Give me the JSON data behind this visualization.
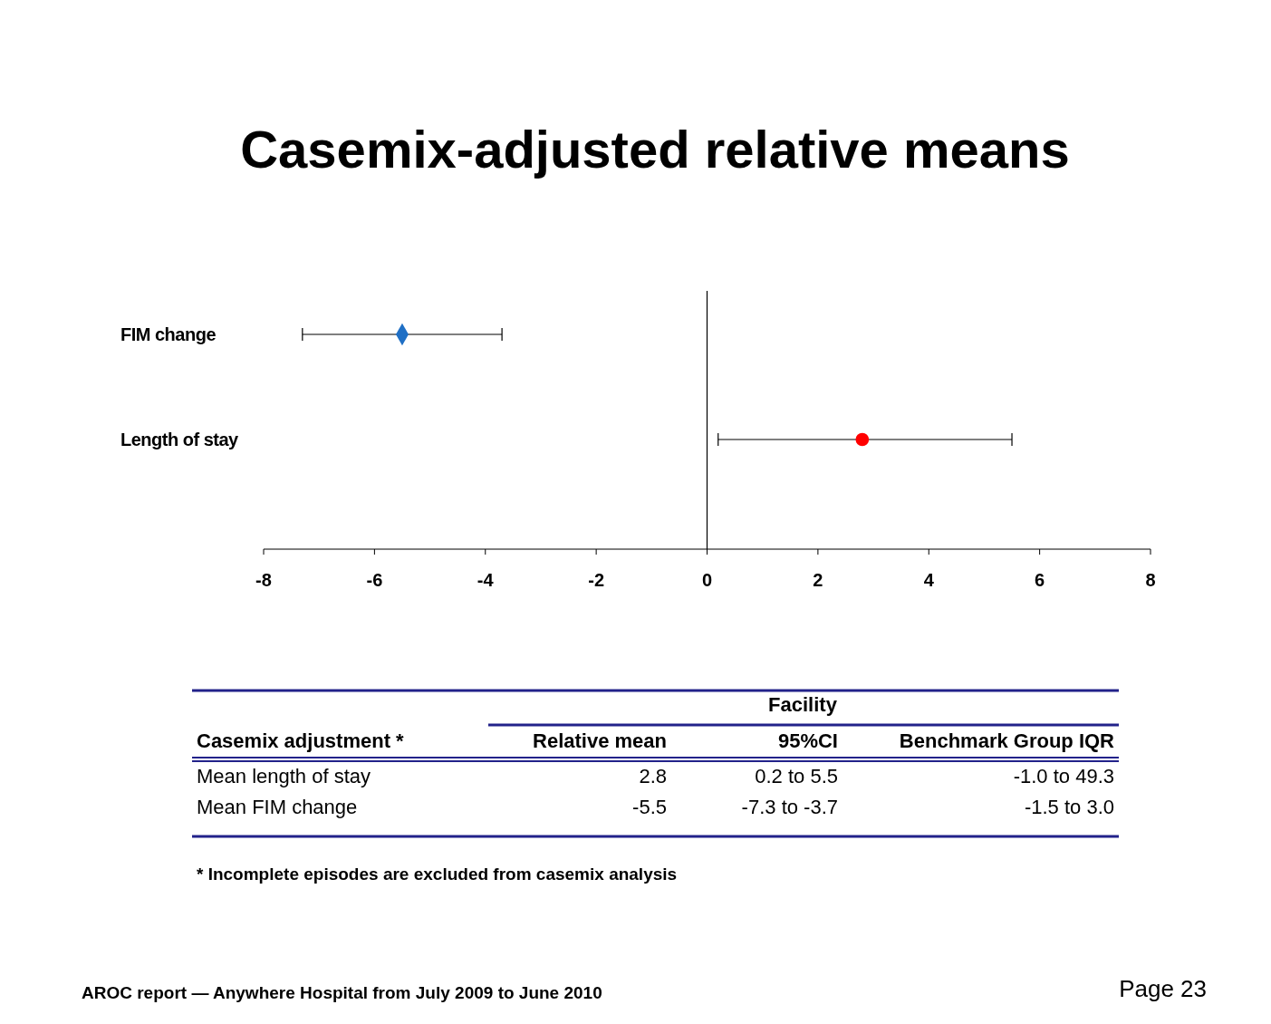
{
  "chart_data": {
    "type": "scatter",
    "orientation": "horizontal",
    "title": "Casemix-adjusted relative means",
    "categories": [
      "FIM change",
      "Length of stay"
    ],
    "series": [
      {
        "color": "#1f6fc5",
        "marker": "diamond",
        "values": [
          -5.5,
          null
        ],
        "errors": [
          [
            -7.3,
            -3.7
          ],
          null
        ]
      },
      {
        "color": "#ff0000",
        "marker": "circle",
        "values": [
          null,
          2.8
        ],
        "errors": [
          null,
          [
            0.2,
            5.5
          ]
        ]
      }
    ],
    "xlim": [
      -8,
      8
    ],
    "xticks": [
      -8,
      -6,
      -4,
      -2,
      0,
      2,
      4,
      6,
      8
    ],
    "annotations": [
      "Facility",
      "Casemix adjustment *",
      "Relative mean",
      "95%CI",
      "Benchmark Group IQR",
      "Mean length of stay",
      "2.8",
      "0.2 to 5.5",
      "-1.0 to 49.3",
      "Mean FIM change",
      "-5.5",
      "-7.3 to -3.7",
      "-1.5 to 3.0",
      "* Incomplete episodes are excluded from casemix analysis",
      "AROC report — Anywhere Hospital from July 2009 to June 2010",
      "Page 23"
    ]
  }
}
